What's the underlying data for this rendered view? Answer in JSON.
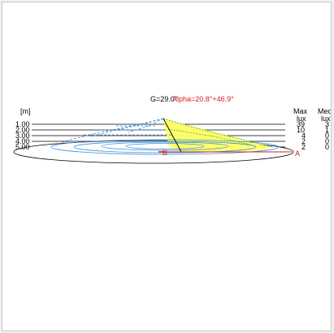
{
  "diagram": {
    "g_label": "G=29.0°",
    "alpha_label": "Alpha=20.8°+46.9°",
    "unit_label": "[m]",
    "heights": [
      "1.00",
      "2.00",
      "3.00",
      "4.00",
      "5.00"
    ],
    "max_header": "Max",
    "med_header": "Med",
    "max_unit": "lux",
    "med_unit": "lux",
    "max_values": [
      "39",
      "10",
      "4",
      "2",
      "2"
    ],
    "med_values": [
      "3",
      "1",
      "0",
      "0",
      "0"
    ],
    "point_a": "A",
    "point_b": "B",
    "colors": {
      "contour_blue": "#3a8fd8",
      "beam_yellow": "#ffff66",
      "beam_green": "#3aa040",
      "axis_red": "#d42020"
    }
  }
}
